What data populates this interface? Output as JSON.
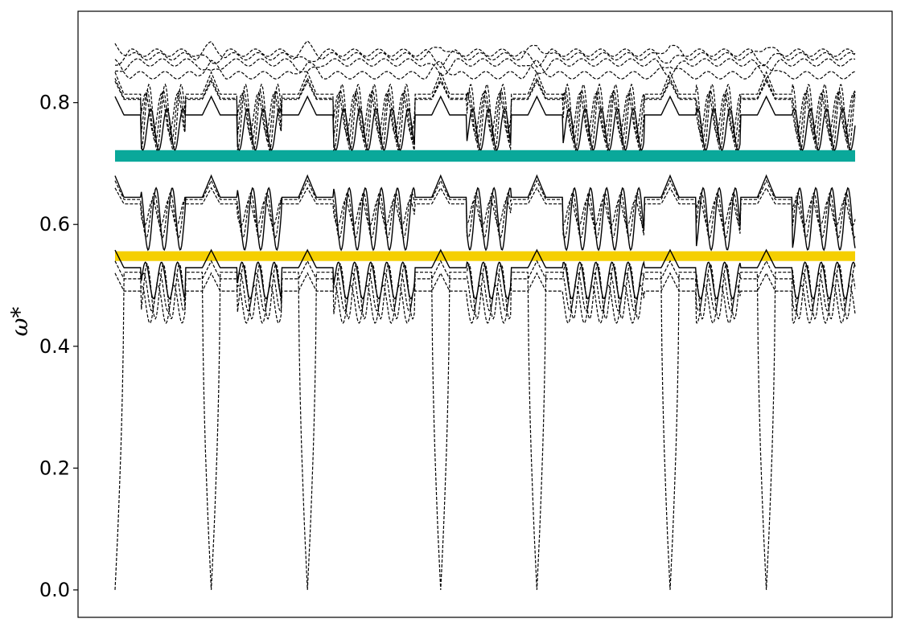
{
  "chart_data": {
    "type": "line",
    "title": "",
    "xlabel": "",
    "ylabel": "ω*",
    "ylim": [
      -0.045,
      0.95
    ],
    "xlim": [
      0,
      1
    ],
    "yticks": [
      {
        "value": 0.0,
        "label": "0.0"
      },
      {
        "value": 0.2,
        "label": "0.2"
      },
      {
        "value": 0.4,
        "label": "0.4"
      },
      {
        "value": 0.6,
        "label": "0.6"
      },
      {
        "value": 0.8,
        "label": "0.8"
      }
    ],
    "grid": false,
    "legend": "none",
    "band_gaps": [
      {
        "y_low": 0.703,
        "y_high": 0.722,
        "color": "#0aa89a"
      },
      {
        "y_low": 0.54,
        "y_high": 0.556,
        "color": "#f5cf00"
      }
    ],
    "defects_x": [
      0.0,
      0.13,
      0.26,
      0.44,
      0.57,
      0.75,
      0.88
    ],
    "series": [
      {
        "style": "dashed",
        "band": "acoustic",
        "dips_to": 0.0,
        "floor": 0.445,
        "top": 0.535
      },
      {
        "style": "solid",
        "band": "low",
        "floor": 0.478,
        "top": 0.538
      },
      {
        "style": "dashed",
        "band": "low",
        "floor": 0.458,
        "top": 0.52
      },
      {
        "style": "dashed",
        "band": "low",
        "floor": 0.438,
        "top": 0.5
      },
      {
        "style": "solid",
        "band": "middle",
        "floor": 0.558,
        "top": 0.66
      },
      {
        "style": "dashed",
        "band": "middle",
        "floor": 0.578,
        "top": 0.652
      },
      {
        "style": "dashed",
        "band": "middle",
        "floor": 0.598,
        "top": 0.64
      },
      {
        "style": "solid",
        "band": "upper",
        "floor": 0.722,
        "top": 0.79
      },
      {
        "style": "dashed",
        "band": "upper",
        "floor": 0.722,
        "top": 0.83
      },
      {
        "style": "dashed",
        "band": "upper",
        "floor": 0.735,
        "top": 0.82
      },
      {
        "style": "dashed",
        "band": "upper",
        "floor": 0.75,
        "top": 0.815
      },
      {
        "style": "dashed",
        "band": "top",
        "level": 0.845
      },
      {
        "style": "dashed",
        "band": "top",
        "level": 0.866
      },
      {
        "style": "dashed",
        "band": "top",
        "level": 0.876
      },
      {
        "style": "dashed",
        "band": "top",
        "level": 0.882
      }
    ],
    "line_color": "#000000"
  }
}
